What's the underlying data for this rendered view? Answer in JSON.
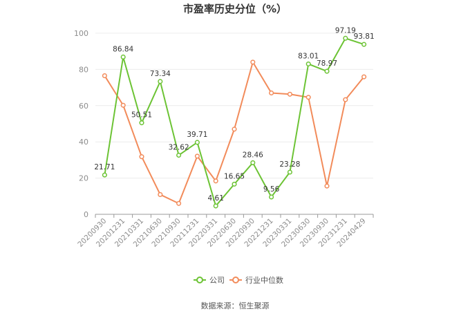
{
  "chart_data": {
    "type": "line",
    "title": "市盈率历史分位（%）",
    "categories": [
      "20200930",
      "20201231",
      "20210331",
      "20210630",
      "20210930",
      "20211231",
      "20220331",
      "20220630",
      "20220930",
      "20221231",
      "20230331",
      "20230630",
      "20230930",
      "20231231",
      "20240429"
    ],
    "series": [
      {
        "name": "公司",
        "color": "#6cc334",
        "values": [
          21.71,
          86.84,
          50.51,
          73.34,
          32.62,
          39.71,
          4.61,
          16.65,
          28.46,
          9.56,
          23.28,
          83.01,
          78.97,
          97.19,
          93.81
        ],
        "labels": [
          "21.71",
          "86.84",
          "50.51",
          "73.34",
          "32.62",
          "39.71",
          "4.61",
          "16.65",
          "28.46",
          "9.56",
          "23.28",
          "83.01",
          "78.97",
          "97.19",
          "93.81"
        ]
      },
      {
        "name": "行业中位数",
        "color": "#f28b5a",
        "values": [
          76.5,
          60.2,
          31.8,
          10.9,
          6.0,
          32.1,
          18.4,
          47.0,
          84.0,
          67.0,
          66.3,
          64.6,
          15.6,
          63.3,
          75.9
        ]
      }
    ],
    "yticks": [
      0,
      20,
      40,
      60,
      80,
      100
    ],
    "ylim": [
      0,
      100
    ],
    "grid": true,
    "legend": "bottom-center"
  },
  "source": "数据来源：恒生聚源"
}
